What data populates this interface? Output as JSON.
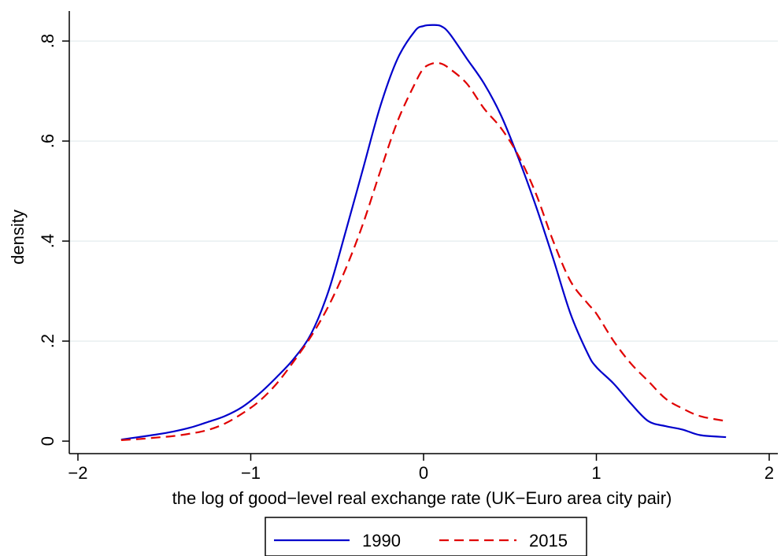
{
  "chart_data": {
    "type": "line",
    "title": "",
    "xlabel": "the log of good−level real exchange rate (UK−Euro area city pair)",
    "ylabel": "density",
    "xlim": [
      -2.05,
      2.05
    ],
    "ylim": [
      -0.025,
      0.86
    ],
    "x_ticks": [
      -2,
      -1,
      0,
      1,
      2
    ],
    "x_tick_labels": [
      "−2",
      "−1",
      "0",
      "1",
      "2"
    ],
    "y_ticks": [
      0,
      0.2,
      0.4,
      0.6,
      0.8
    ],
    "y_tick_labels": [
      "0",
      ".2",
      ".4",
      ".6",
      ".8"
    ],
    "grid": "horizontal",
    "legend_position": "bottom",
    "series": [
      {
        "name": "1990",
        "color": "#0000cc",
        "dash": "solid",
        "x": [
          -1.75,
          -1.65,
          -1.55,
          -1.45,
          -1.35,
          -1.25,
          -1.15,
          -1.05,
          -0.95,
          -0.85,
          -0.75,
          -0.65,
          -0.55,
          -0.45,
          -0.35,
          -0.25,
          -0.15,
          -0.05,
          0.0,
          0.05,
          0.1,
          0.15,
          0.25,
          0.35,
          0.45,
          0.55,
          0.65,
          0.75,
          0.85,
          0.95,
          1.0,
          1.1,
          1.2,
          1.3,
          1.4,
          1.5,
          1.6,
          1.75
        ],
        "y": [
          0.003,
          0.008,
          0.013,
          0.019,
          0.027,
          0.038,
          0.05,
          0.068,
          0.095,
          0.128,
          0.165,
          0.215,
          0.3,
          0.42,
          0.545,
          0.67,
          0.765,
          0.82,
          0.83,
          0.832,
          0.83,
          0.815,
          0.765,
          0.715,
          0.65,
          0.565,
          0.47,
          0.365,
          0.255,
          0.175,
          0.148,
          0.115,
          0.075,
          0.04,
          0.03,
          0.023,
          0.012,
          0.008
        ]
      },
      {
        "name": "2015",
        "color": "#e00000",
        "dash": "dashed",
        "x": [
          -1.75,
          -1.65,
          -1.55,
          -1.45,
          -1.35,
          -1.25,
          -1.15,
          -1.05,
          -0.95,
          -0.85,
          -0.75,
          -0.65,
          -0.55,
          -0.45,
          -0.35,
          -0.25,
          -0.15,
          -0.05,
          0.0,
          0.05,
          0.1,
          0.15,
          0.25,
          0.35,
          0.45,
          0.55,
          0.65,
          0.75,
          0.85,
          0.95,
          1.0,
          1.1,
          1.2,
          1.3,
          1.4,
          1.5,
          1.6,
          1.75
        ],
        "y": [
          0.002,
          0.004,
          0.007,
          0.01,
          0.015,
          0.022,
          0.035,
          0.055,
          0.08,
          0.115,
          0.16,
          0.21,
          0.27,
          0.345,
          0.435,
          0.54,
          0.64,
          0.715,
          0.745,
          0.755,
          0.755,
          0.745,
          0.715,
          0.665,
          0.625,
          0.57,
          0.495,
          0.4,
          0.32,
          0.275,
          0.255,
          0.2,
          0.155,
          0.12,
          0.085,
          0.065,
          0.05,
          0.04
        ]
      }
    ]
  }
}
